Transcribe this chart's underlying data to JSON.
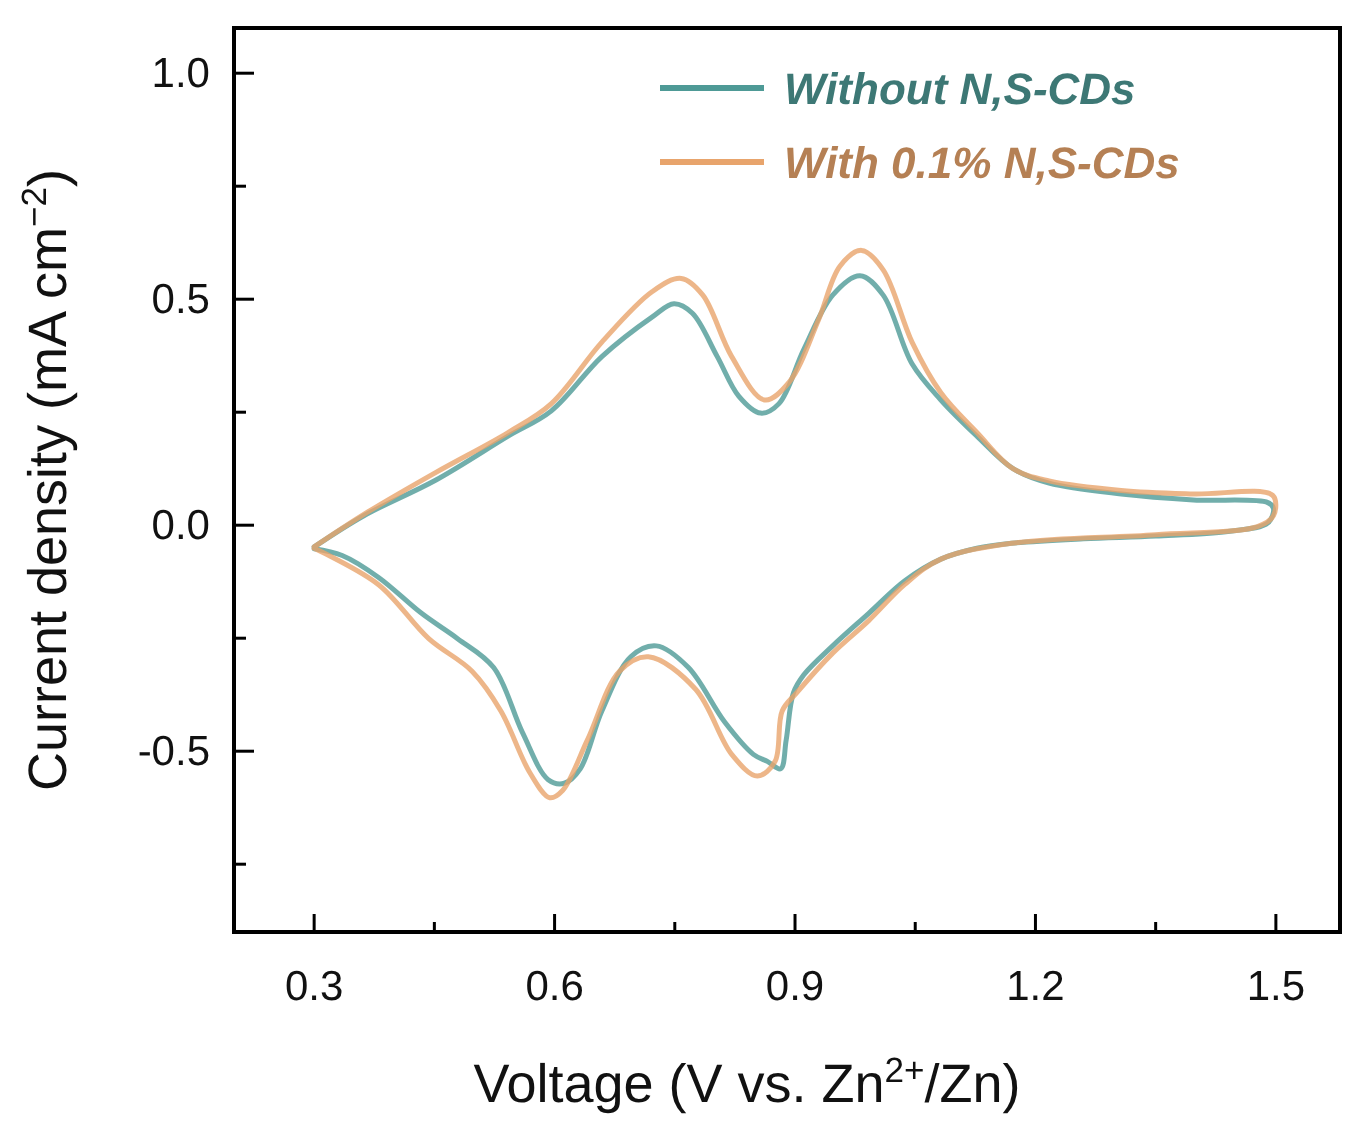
{
  "chart_data": {
    "type": "line",
    "xlabel": "Voltage (V vs. Zn$^{2+}$/Zn)",
    "ylabel": "Current density (mA cm$^{−2}$)",
    "xlim": [
      0.2,
      1.58
    ],
    "ylim": [
      -0.9,
      1.1
    ],
    "xticks": [
      0.3,
      {
        "value": 0.45,
        "label": null
      },
      0.6,
      {
        "value": 0.75,
        "label": null
      },
      0.9,
      {
        "value": 1.05,
        "label": null
      },
      1.2,
      {
        "value": 1.35,
        "label": null
      },
      1.5
    ],
    "yticks": [
      {
        "value": -0.75,
        "label": null
      },
      {
        "value": -0.5,
        "label": "-0.5"
      },
      {
        "value": -0.25,
        "label": null
      },
      {
        "value": 0,
        "label": "0.0"
      },
      {
        "value": 0.25,
        "label": null
      },
      {
        "value": 0.5,
        "label": "0.5"
      },
      {
        "value": 0.75,
        "label": null
      },
      {
        "value": 1,
        "label": "1.0"
      }
    ],
    "grid": false,
    "legend": "top right",
    "marker": "none",
    "line_style": "solid",
    "series": [
      {
        "name": "Without N,S-CDs",
        "color": "#4e9a96",
        "x": [
          0.3,
          0.362,
          0.452,
          0.542,
          0.596,
          0.659,
          0.722,
          0.749,
          0.772,
          0.803,
          0.83,
          0.857,
          0.88,
          0.911,
          0.947,
          0.981,
          1.01,
          1.046,
          1.082,
          1.127,
          1.172,
          1.217,
          1.307,
          1.397,
          1.49,
          1.497,
          1.49,
          1.44,
          1.35,
          1.26,
          1.17,
          1.127,
          1.082,
          1.037,
          0.992,
          0.947,
          0.911,
          0.898,
          0.889,
          0.882,
          0.866,
          0.848,
          0.812,
          0.767,
          0.727,
          0.695,
          0.659,
          0.632,
          0.612,
          0.592,
          0.56,
          0.524,
          0.479,
          0.434,
          0.38,
          0.335,
          0.3
        ],
        "values": [
          -0.048,
          0.021,
          0.1,
          0.197,
          0.253,
          0.373,
          0.461,
          0.49,
          0.469,
          0.373,
          0.285,
          0.248,
          0.269,
          0.389,
          0.509,
          0.552,
          0.509,
          0.357,
          0.277,
          0.197,
          0.125,
          0.093,
          0.069,
          0.056,
          0.05,
          0.037,
          0.005,
          -0.014,
          -0.024,
          -0.03,
          -0.04,
          -0.051,
          -0.075,
          -0.123,
          -0.195,
          -0.267,
          -0.331,
          -0.371,
          -0.475,
          -0.539,
          -0.523,
          -0.507,
          -0.435,
          -0.315,
          -0.267,
          -0.291,
          -0.411,
          -0.539,
          -0.571,
          -0.563,
          -0.459,
          -0.315,
          -0.251,
          -0.195,
          -0.115,
          -0.067,
          -0.052
        ]
      },
      {
        "name": "With 0.1% N,S-CDs",
        "color": "#e8a46c",
        "x": [
          0.3,
          0.362,
          0.452,
          0.542,
          0.596,
          0.659,
          0.722,
          0.758,
          0.785,
          0.821,
          0.862,
          0.893,
          0.929,
          0.956,
          0.983,
          1.01,
          1.046,
          1.082,
          1.127,
          1.172,
          1.217,
          1.307,
          1.397,
          1.496,
          1.497,
          1.477,
          1.35,
          1.17,
          1.082,
          1.037,
          0.992,
          0.947,
          0.902,
          0.884,
          0.875,
          0.853,
          0.821,
          0.776,
          0.717,
          0.681,
          0.641,
          0.61,
          0.594,
          0.569,
          0.533,
          0.497,
          0.443,
          0.38,
          0.3
        ],
        "values": [
          -0.048,
          0.024,
          0.117,
          0.205,
          0.269,
          0.405,
          0.517,
          0.546,
          0.509,
          0.373,
          0.277,
          0.317,
          0.453,
          0.573,
          0.608,
          0.565,
          0.405,
          0.293,
          0.205,
          0.125,
          0.098,
          0.077,
          0.069,
          0.066,
          0.021,
          -0.003,
          -0.021,
          -0.04,
          -0.075,
          -0.131,
          -0.211,
          -0.283,
          -0.371,
          -0.411,
          -0.523,
          -0.555,
          -0.507,
          -0.363,
          -0.291,
          -0.323,
          -0.475,
          -0.587,
          -0.603,
          -0.547,
          -0.411,
          -0.323,
          -0.251,
          -0.131,
          -0.051
        ]
      }
    ]
  }
}
